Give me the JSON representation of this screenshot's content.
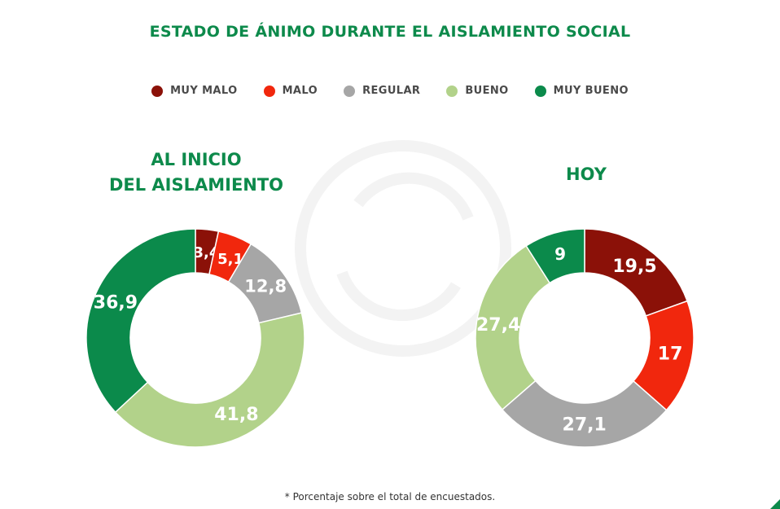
{
  "title": "ESTADO DE ÁNIMO DURANTE EL AISLAMIENTO SOCIAL",
  "legend": [
    {
      "label": "MUY MALO",
      "color": "#8b1108"
    },
    {
      "label": "MALO",
      "color": "#f1270d"
    },
    {
      "label": "REGULAR",
      "color": "#a6a6a6"
    },
    {
      "label": "BUENO",
      "color": "#b2d28a"
    },
    {
      "label": "MUY BUENO",
      "color": "#0b8a4b"
    }
  ],
  "chart_titles": {
    "left_line1": "AL INICIO",
    "left_line2": "DEL AISLAMIENTO",
    "right": "HOY"
  },
  "chart_data": [
    {
      "type": "pie",
      "title": "AL INICIO DEL AISLAMIENTO",
      "categories": [
        "MUY MALO",
        "MALO",
        "REGULAR",
        "BUENO",
        "MUY BUENO"
      ],
      "values": [
        3.4,
        5.1,
        12.8,
        41.8,
        36.9
      ],
      "data_labels": [
        "3,4",
        "5,1",
        "12,8",
        "41,8",
        "36,9"
      ],
      "donut": true
    },
    {
      "type": "pie",
      "title": "HOY",
      "categories": [
        "MUY MALO",
        "MALO",
        "REGULAR",
        "BUENO",
        "MUY BUENO"
      ],
      "values": [
        19.5,
        17,
        27.1,
        27.4,
        9
      ],
      "data_labels": [
        "19,5",
        "17",
        "27,1",
        "27,4",
        "9"
      ],
      "donut": true
    }
  ],
  "footnote": "* Porcentaje sobre el total de encuestados."
}
